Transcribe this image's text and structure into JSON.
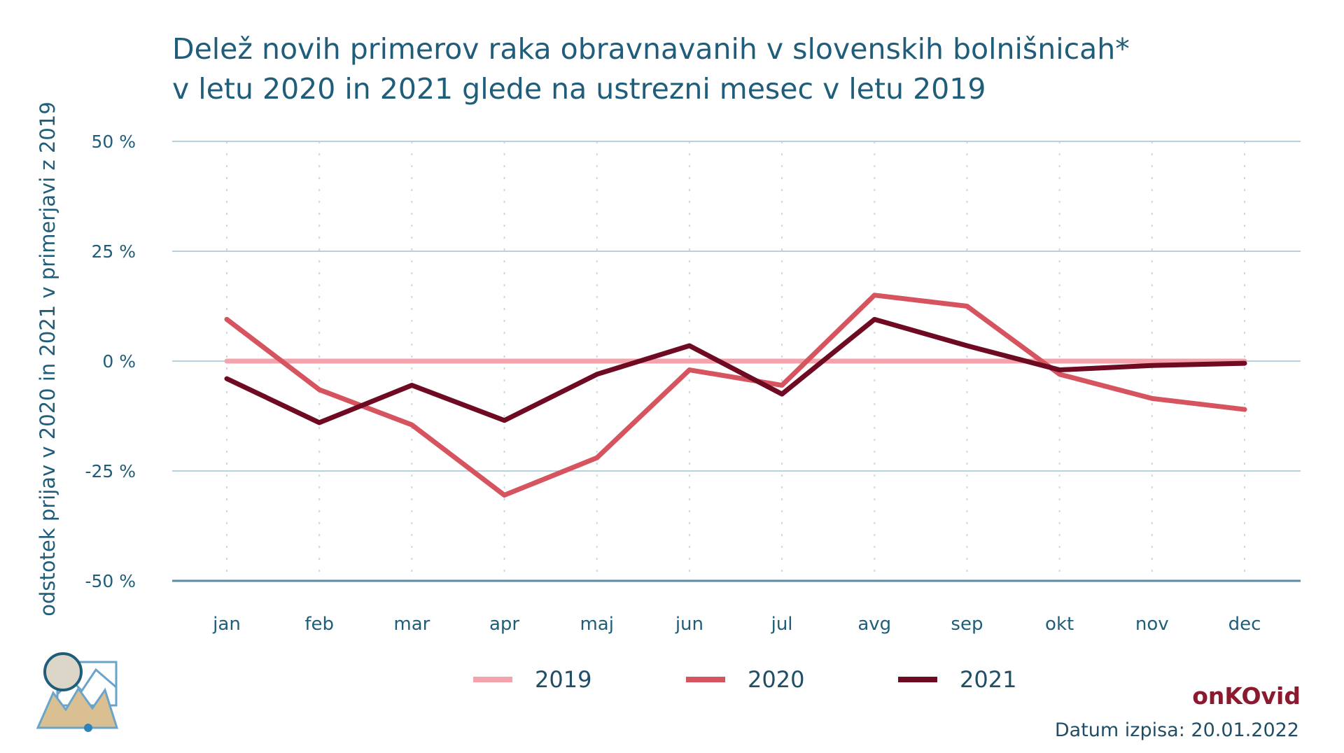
{
  "chart_data": {
    "type": "line",
    "title_line1": "Delež novih primerov raka obravnavanih v slovenskih bolnišnicah*",
    "title_line2": "v letu 2020 in 2021 glede na ustrezni mesec v letu 2019",
    "ylabel": "odstotek prijav v 2020 in 2021 v primerjavi z 2019",
    "xlabel": "",
    "categories": [
      "jan",
      "feb",
      "mar",
      "apr",
      "maj",
      "jun",
      "jul",
      "avg",
      "sep",
      "okt",
      "nov",
      "dec"
    ],
    "ylim": [
      -50,
      50
    ],
    "yticks": [
      50,
      25,
      0,
      -25,
      -50
    ],
    "ytick_labels": [
      "50 %",
      "25 %",
      "0 %",
      "-25 %",
      "-50 %"
    ],
    "grid": true,
    "legend_position": "bottom",
    "series": [
      {
        "name": "2019",
        "color": "#f4a3ad",
        "values": [
          0,
          0,
          0,
          0,
          0,
          0,
          0,
          0,
          0,
          0,
          0,
          0
        ]
      },
      {
        "name": "2020",
        "color": "#d6545f",
        "values": [
          9.5,
          -6.5,
          -14.5,
          -30.5,
          -22,
          -2,
          -5.5,
          15,
          12.5,
          -3,
          -8.5,
          -11
        ]
      },
      {
        "name": "2021",
        "color": "#6e0a22",
        "values": [
          -4,
          -14,
          -5.5,
          -13.5,
          -3,
          3.5,
          -7.5,
          9.5,
          3.5,
          -2,
          -1,
          -0.5
        ]
      }
    ]
  },
  "brand": "onKOvid",
  "footer": "Datum izpisa: 20.01.2022",
  "logo_icon": "onkovid-logo-icon"
}
